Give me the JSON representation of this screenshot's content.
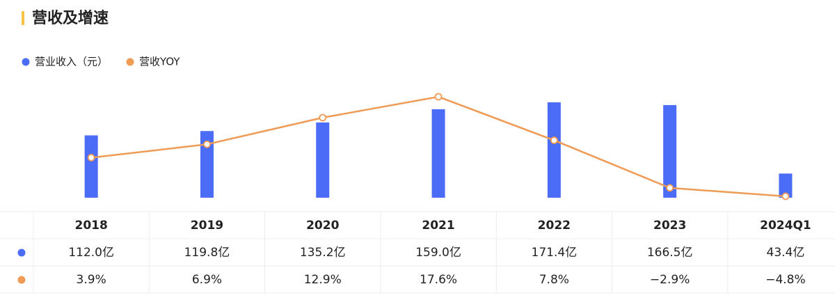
{
  "chart_data": {
    "type": "combo",
    "title": "营收及增速",
    "categories": [
      "2018",
      "2019",
      "2020",
      "2021",
      "2022",
      "2023",
      "2024Q1"
    ],
    "series": [
      {
        "name": "营业收入（元）",
        "color": "#4a6cf7",
        "kind": "bar",
        "values": [
          112.0,
          119.8,
          135.2,
          159.0,
          171.4,
          166.5,
          43.4
        ],
        "value_labels": [
          "112.0亿",
          "119.8亿",
          "135.2亿",
          "159.0亿",
          "171.4亿",
          "166.5亿",
          "43.4亿"
        ]
      },
      {
        "name": "营收YOY",
        "color": "#ef9a55",
        "kind": "line",
        "values": [
          3.9,
          6.9,
          12.9,
          17.6,
          7.8,
          -2.9,
          -4.8
        ],
        "value_labels": [
          "3.9%",
          "6.9%",
          "12.9%",
          "17.6%",
          "7.8%",
          "−2.9%",
          "−4.8%"
        ]
      }
    ]
  }
}
